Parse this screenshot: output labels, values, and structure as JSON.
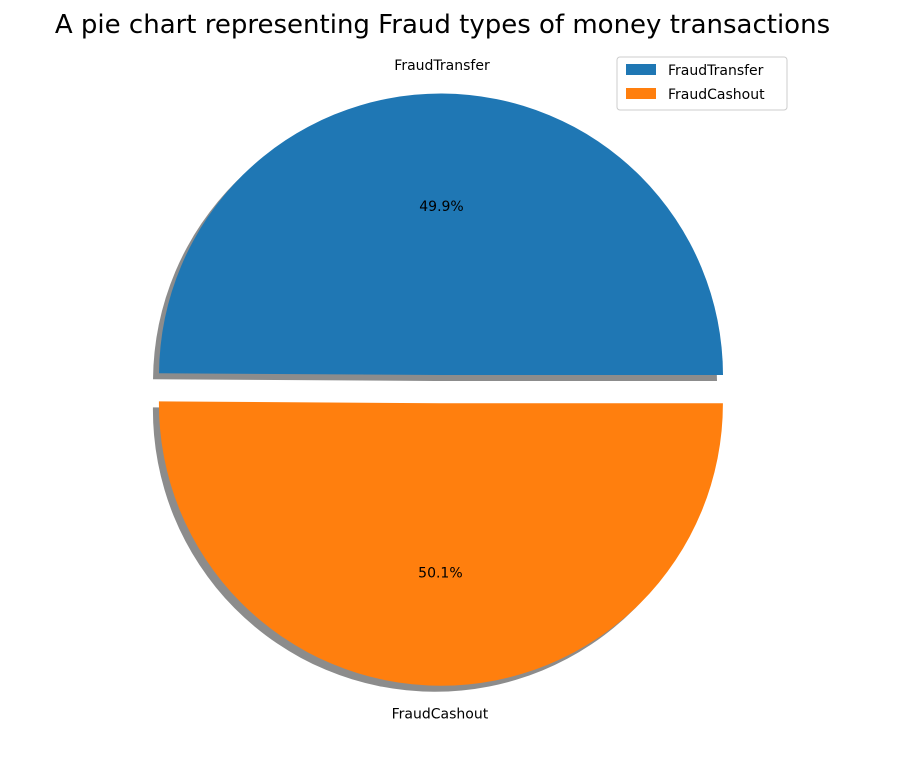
{
  "chart_data": {
    "type": "pie",
    "title": "A pie chart representing Fraud types of money transactions",
    "categories": [
      "FraudTransfer",
      "FraudCashout"
    ],
    "values": [
      49.9,
      50.1
    ],
    "value_labels": [
      "49.9%",
      "50.1%"
    ],
    "colors": [
      "#1f77b4",
      "#ff7f0e"
    ],
    "explode": [
      0,
      0.1
    ],
    "shadow": true,
    "legend": {
      "position": "top-right",
      "entries": [
        "FraudTransfer",
        "FraudCashout"
      ]
    }
  }
}
